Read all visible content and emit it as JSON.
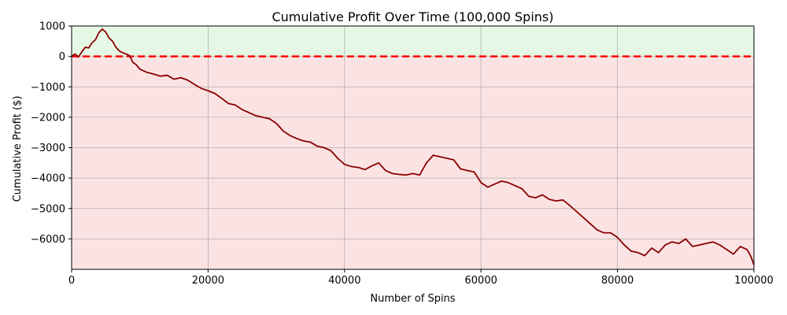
{
  "chart_data": {
    "type": "line",
    "title": "Cumulative Profit Over Time (100,000 Spins)",
    "xlabel": "Number of Spins",
    "ylabel": "Cumulative Profit ($)",
    "xlim": [
      0,
      100000
    ],
    "ylim": [
      -7000,
      1000
    ],
    "x_ticks": [
      0,
      20000,
      40000,
      60000,
      80000,
      100000
    ],
    "x_tick_labels": [
      "0",
      "20000",
      "40000",
      "60000",
      "80000",
      "100000"
    ],
    "y_ticks": [
      1000,
      0,
      -1000,
      -2000,
      -3000,
      -4000,
      -5000,
      -6000
    ],
    "y_tick_labels": [
      "1000",
      "0",
      "−1000",
      "−2000",
      "−3000",
      "−4000",
      "−5000",
      "−6000"
    ],
    "grid": true,
    "reference_line": {
      "y": 0,
      "style": "dashed",
      "color": "#ff0000"
    },
    "regions": [
      {
        "from": 0,
        "to": 1000,
        "color": "#e5f8e5"
      },
      {
        "from": -7000,
        "to": 0,
        "color": "#fbe3e3"
      }
    ],
    "series": [
      {
        "color": "#8b0000",
        "points": [
          [
            0,
            0
          ],
          [
            500,
            80
          ],
          [
            1000,
            -20
          ],
          [
            1500,
            150
          ],
          [
            2000,
            300
          ],
          [
            2500,
            280
          ],
          [
            3000,
            450
          ],
          [
            3500,
            550
          ],
          [
            4000,
            780
          ],
          [
            4500,
            900
          ],
          [
            5000,
            800
          ],
          [
            5500,
            600
          ],
          [
            6000,
            500
          ],
          [
            6500,
            300
          ],
          [
            7000,
            180
          ],
          [
            7500,
            120
          ],
          [
            8000,
            80
          ],
          [
            8500,
            20
          ],
          [
            9000,
            -200
          ],
          [
            9500,
            -280
          ],
          [
            10000,
            -420
          ],
          [
            11000,
            -520
          ],
          [
            12000,
            -580
          ],
          [
            13000,
            -650
          ],
          [
            14000,
            -620
          ],
          [
            15000,
            -750
          ],
          [
            16000,
            -700
          ],
          [
            17000,
            -780
          ],
          [
            18000,
            -920
          ],
          [
            19000,
            -1050
          ],
          [
            20000,
            -1130
          ],
          [
            21000,
            -1220
          ],
          [
            22000,
            -1380
          ],
          [
            23000,
            -1550
          ],
          [
            24000,
            -1600
          ],
          [
            25000,
            -1750
          ],
          [
            26000,
            -1850
          ],
          [
            27000,
            -1950
          ],
          [
            28000,
            -2000
          ],
          [
            29000,
            -2050
          ],
          [
            30000,
            -2200
          ],
          [
            31000,
            -2450
          ],
          [
            32000,
            -2600
          ],
          [
            33000,
            -2700
          ],
          [
            34000,
            -2780
          ],
          [
            35000,
            -2820
          ],
          [
            36000,
            -2950
          ],
          [
            37000,
            -3000
          ],
          [
            38000,
            -3100
          ],
          [
            39000,
            -3350
          ],
          [
            40000,
            -3550
          ],
          [
            41000,
            -3620
          ],
          [
            42000,
            -3650
          ],
          [
            43000,
            -3720
          ],
          [
            44000,
            -3600
          ],
          [
            45000,
            -3500
          ],
          [
            46000,
            -3750
          ],
          [
            47000,
            -3850
          ],
          [
            48000,
            -3880
          ],
          [
            49000,
            -3900
          ],
          [
            50000,
            -3850
          ],
          [
            51000,
            -3900
          ],
          [
            52000,
            -3500
          ],
          [
            53000,
            -3250
          ],
          [
            54000,
            -3300
          ],
          [
            55000,
            -3350
          ],
          [
            56000,
            -3400
          ],
          [
            57000,
            -3700
          ],
          [
            58000,
            -3750
          ],
          [
            59000,
            -3800
          ],
          [
            60000,
            -4150
          ],
          [
            61000,
            -4300
          ],
          [
            62000,
            -4200
          ],
          [
            63000,
            -4100
          ],
          [
            64000,
            -4150
          ],
          [
            65000,
            -4250
          ],
          [
            66000,
            -4350
          ],
          [
            67000,
            -4600
          ],
          [
            68000,
            -4650
          ],
          [
            69000,
            -4550
          ],
          [
            70000,
            -4700
          ],
          [
            71000,
            -4750
          ],
          [
            72000,
            -4720
          ],
          [
            73000,
            -4900
          ],
          [
            74000,
            -5100
          ],
          [
            75000,
            -5300
          ],
          [
            76000,
            -5500
          ],
          [
            77000,
            -5700
          ],
          [
            78000,
            -5800
          ],
          [
            79000,
            -5800
          ],
          [
            80000,
            -5950
          ],
          [
            81000,
            -6200
          ],
          [
            82000,
            -6400
          ],
          [
            83000,
            -6450
          ],
          [
            84000,
            -6550
          ],
          [
            85000,
            -6300
          ],
          [
            86000,
            -6450
          ],
          [
            87000,
            -6200
          ],
          [
            88000,
            -6100
          ],
          [
            89000,
            -6150
          ],
          [
            90000,
            -6000
          ],
          [
            91000,
            -6250
          ],
          [
            92000,
            -6200
          ],
          [
            93000,
            -6150
          ],
          [
            94000,
            -6100
          ],
          [
            95000,
            -6200
          ],
          [
            96000,
            -6350
          ],
          [
            97000,
            -6500
          ],
          [
            98000,
            -6250
          ],
          [
            99000,
            -6350
          ],
          [
            99500,
            -6550
          ],
          [
            100000,
            -6850
          ]
        ]
      }
    ]
  }
}
